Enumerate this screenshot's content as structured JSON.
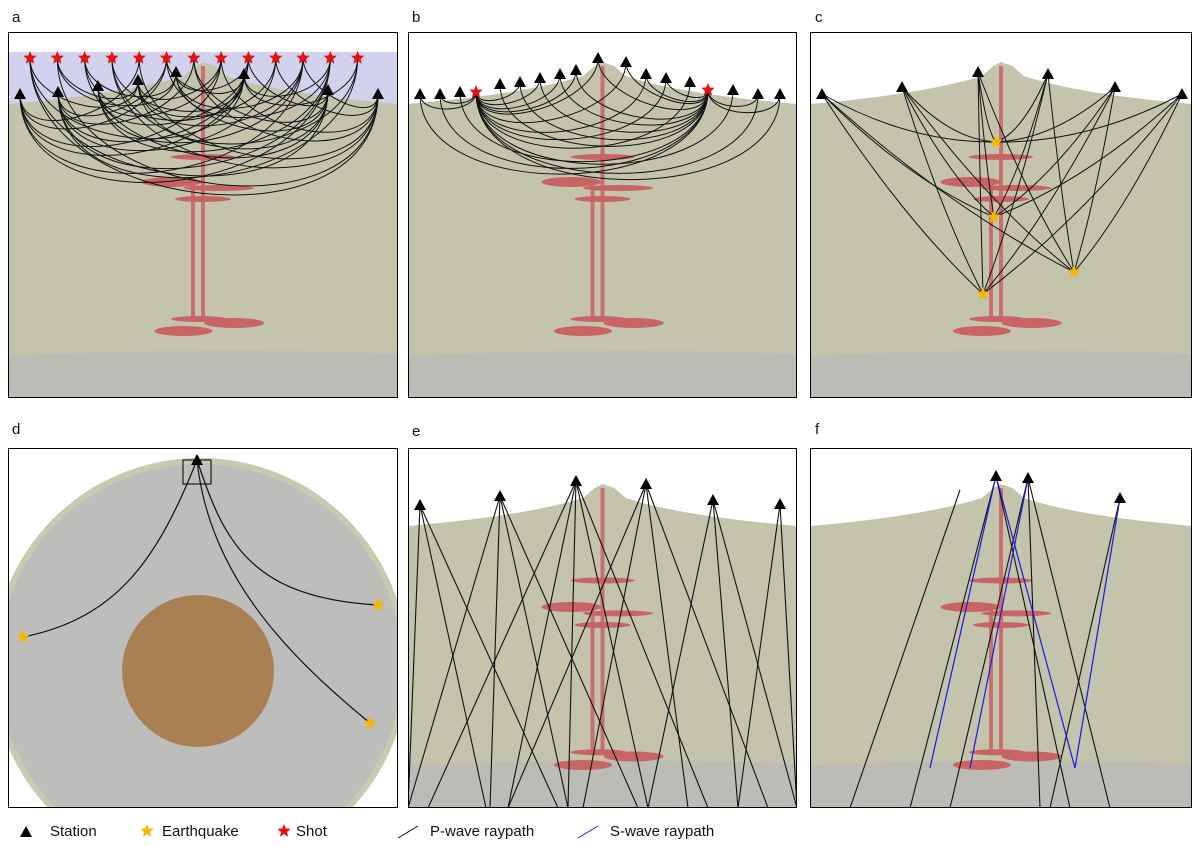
{
  "panels": {
    "labels": [
      "a",
      "b",
      "c",
      "d",
      "e",
      "f"
    ]
  },
  "legend": {
    "station": "Station",
    "earthquake": "Earthquake",
    "shot": "Shot",
    "p_wave": "P-wave raypath",
    "s_wave": "S-wave raypath"
  }
}
